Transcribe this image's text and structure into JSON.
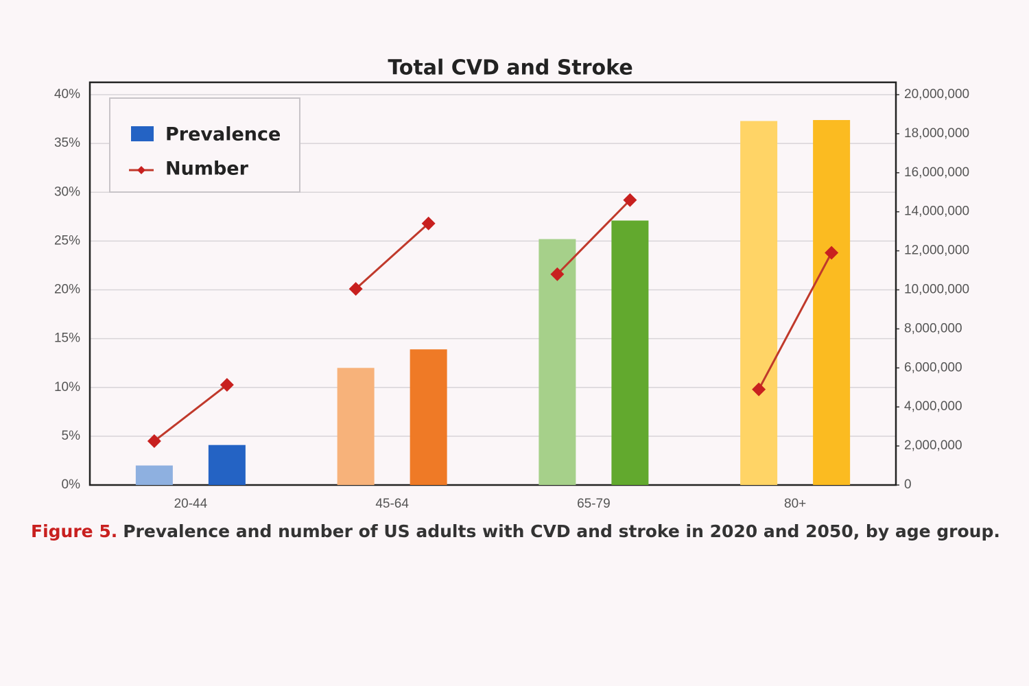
{
  "chart_data": {
    "type": "bar-line",
    "title": "Total CVD and Stroke",
    "categories": [
      "20-44",
      "45-64",
      "65-79",
      "80+"
    ],
    "series": [
      {
        "name": "Prevalence",
        "color": "#2463c4",
        "bar_colors": [
          [
            "#8eb0e0",
            "#2463c4"
          ],
          [
            "#f7b27a",
            "#ef7a26"
          ],
          [
            "#a6d08a",
            "#62a92e"
          ],
          [
            "#ffd466",
            "#fbbb21"
          ]
        ],
        "values": [
          [
            2.0,
            4.1
          ],
          [
            12.0,
            13.9
          ],
          [
            25.2,
            27.1
          ],
          [
            37.3,
            37.4
          ]
        ]
      },
      {
        "name": "Number",
        "color": "#c0392b",
        "marker_color": "#c8201f",
        "axis": "y2",
        "values": [
          [
            2250000,
            5130000
          ],
          [
            10050000,
            13400000
          ],
          [
            10800000,
            14600000
          ],
          [
            4900000,
            11900000
          ]
        ]
      }
    ],
    "ylim": [
      0,
      40
    ],
    "yticks": [
      {
        "value": 0,
        "label": "0%"
      },
      {
        "value": 5,
        "label": "5%"
      },
      {
        "value": 10,
        "label": "10%"
      },
      {
        "value": 15,
        "label": "15%"
      },
      {
        "value": 20,
        "label": "20%"
      },
      {
        "value": 25,
        "label": "25%"
      },
      {
        "value": 30,
        "label": "30%"
      },
      {
        "value": 35,
        "label": "35%"
      },
      {
        "value": 40,
        "label": "40%"
      }
    ],
    "y2lim": [
      0,
      20000000
    ],
    "y2ticks": [
      0,
      {
        "value": 2000000,
        "label": "2,000,000"
      },
      {
        "value": 4000000,
        "label": "4,000,000"
      },
      {
        "value": 6000000,
        "label": "6,000,000"
      },
      {
        "value": 8000000,
        "label": "8,000,000"
      },
      {
        "value": 10000000,
        "label": "10,000,000"
      },
      {
        "value": 12000000,
        "label": "12,000,000"
      },
      {
        "value": 14000000,
        "label": "14,000,000"
      },
      {
        "value": 16000000,
        "label": "16,000,000"
      },
      {
        "value": 18000000,
        "label": "18,000,000"
      },
      {
        "value": 20000000,
        "label": "20,000,000"
      }
    ],
    "grid": true,
    "legend": "top-left"
  },
  "caption": {
    "label": "Figure 5.",
    "text": "Prevalence and number of US adults with CVD and stroke in 2020 and 2050, by age group."
  }
}
